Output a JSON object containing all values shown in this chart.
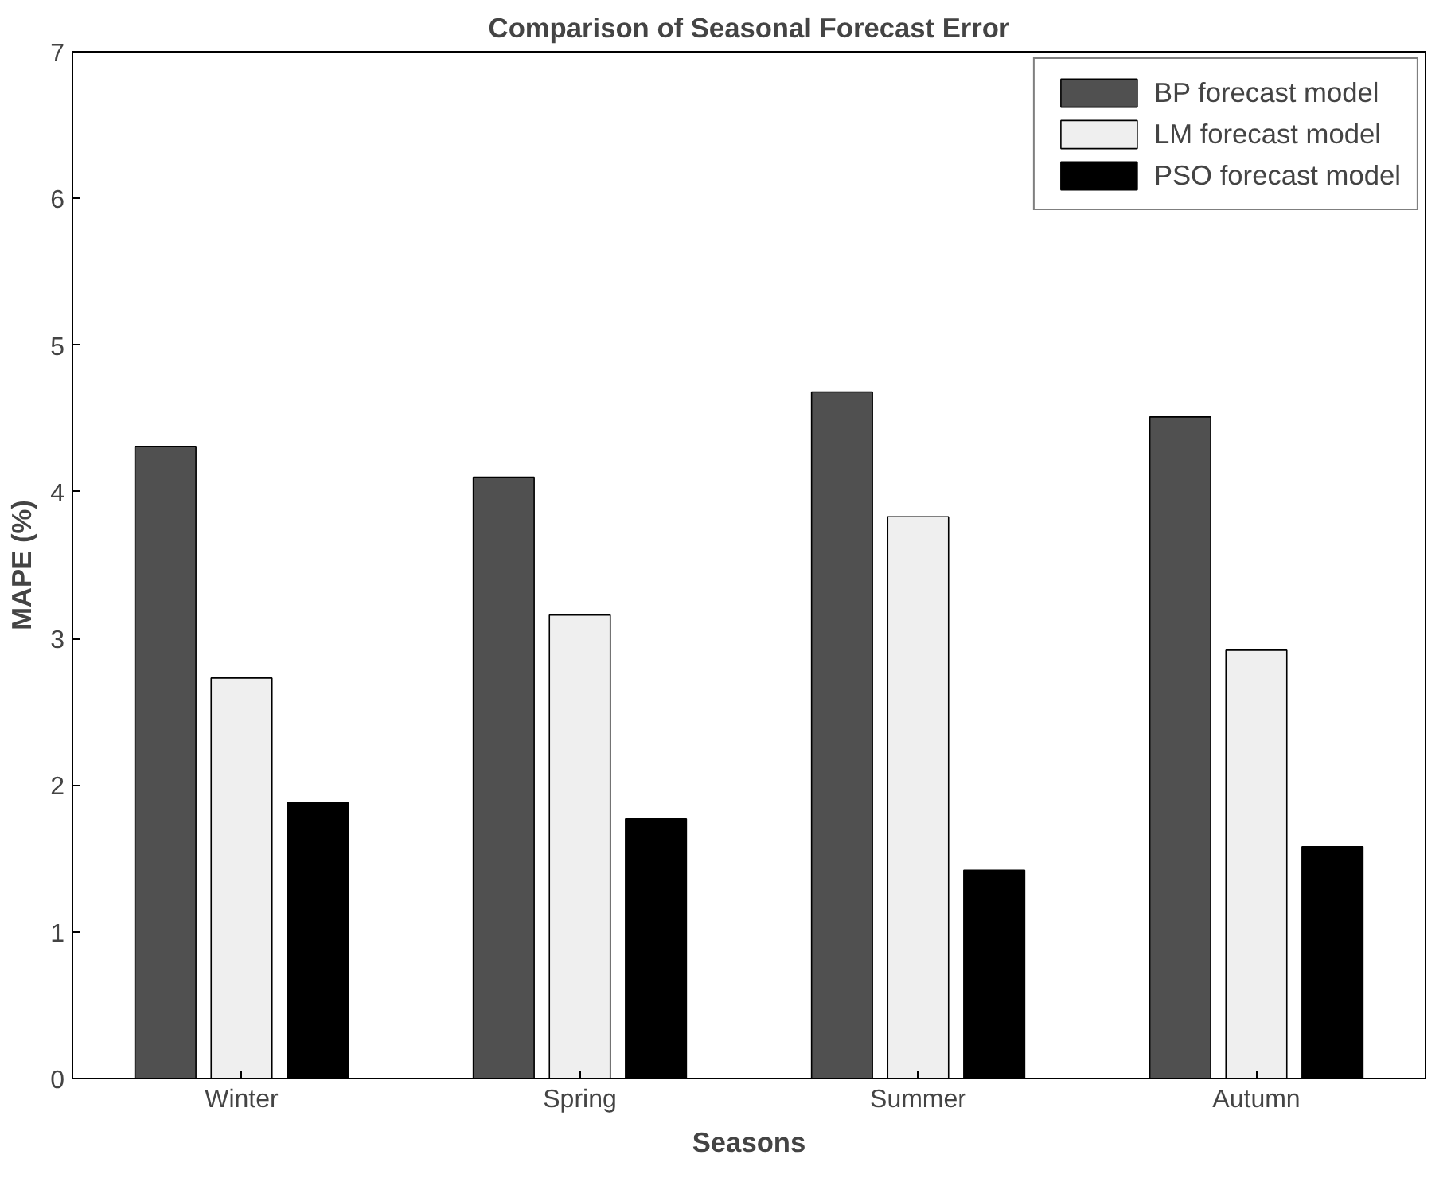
{
  "chart_data": {
    "type": "bar",
    "title": "Comparison of Seasonal Forecast Error",
    "xlabel": "Seasons",
    "ylabel": "MAPE (%)",
    "categories": [
      "Winter",
      "Spring",
      "Summer",
      "Autumn"
    ],
    "series": [
      {
        "name": "BP forecast model",
        "color": "#505050",
        "values": [
          4.31,
          4.1,
          4.68,
          4.51
        ]
      },
      {
        "name": "LM forecast model",
        "color": "#efefef",
        "values": [
          2.73,
          3.16,
          3.83,
          2.92
        ]
      },
      {
        "name": "PSO forecast model",
        "color": "#000000",
        "values": [
          1.88,
          1.77,
          1.42,
          1.58
        ]
      }
    ],
    "ylim": [
      0,
      7
    ],
    "yticks": [
      0,
      1,
      2,
      3,
      4,
      5,
      6,
      7
    ],
    "grid": false,
    "legend": "top right"
  }
}
